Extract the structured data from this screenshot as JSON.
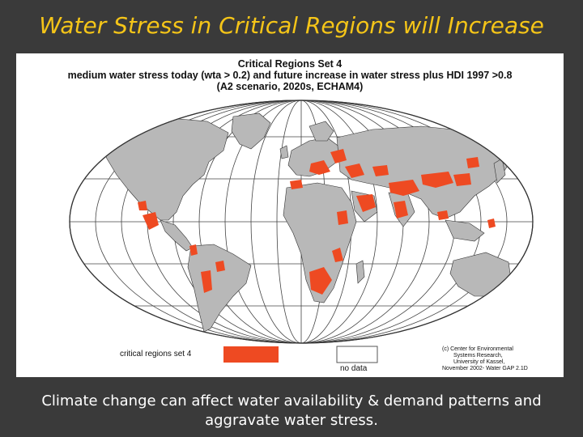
{
  "slide": {
    "title": "Water Stress in Critical Regions will Increase",
    "caption_line1": "Climate change can affect water availability & demand patterns and",
    "caption_line2": "aggravate water stress."
  },
  "map": {
    "title_line1": "Critical Regions Set 4",
    "title_line2": "medium water stress today (wta > 0.2) and future increase in water stress plus HDI 1997 >0.8",
    "title_line3": "(A2 scenario, 2020s, ECHAM4)",
    "colors": {
      "land": "#b8b8b8",
      "critical": "#ee4a22",
      "ocean": "#ffffff",
      "graticule": "#444444"
    },
    "legend": [
      {
        "label": "critical regions set 4",
        "color": "#ee4a22"
      },
      {
        "label": "no data",
        "color": "#ffffff"
      }
    ],
    "credit": [
      "(c) Center for Environmental",
      "Systems Research,",
      "University of Kassel,",
      "November 2002- Water GAP 2.1D"
    ]
  }
}
